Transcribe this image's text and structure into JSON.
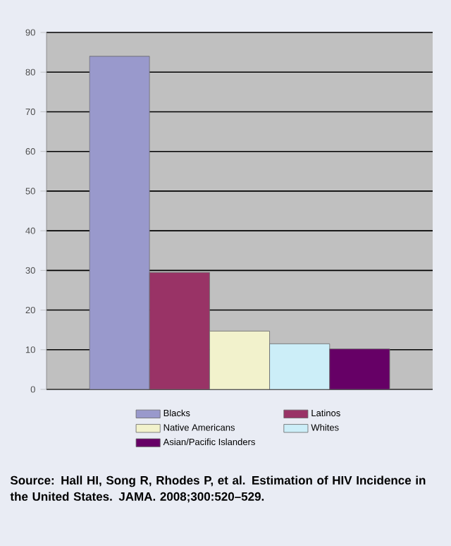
{
  "chart_data": {
    "type": "bar",
    "categories": [
      null
    ],
    "series": [
      {
        "name": "Blacks",
        "color": "#9999cc",
        "values": [
          84
        ]
      },
      {
        "name": "Latinos",
        "color": "#993366",
        "values": [
          29.5
        ]
      },
      {
        "name": "Native Americans",
        "color": "#f2f2cc",
        "values": [
          14.7
        ]
      },
      {
        "name": "Whites",
        "color": "#cceef8",
        "values": [
          11.5
        ]
      },
      {
        "name": "Asian/Pacific Islanders",
        "color": "#660066",
        "values": [
          10.2
        ]
      }
    ],
    "ylim": [
      0,
      90
    ],
    "yticks": [
      0,
      10,
      20,
      30,
      40,
      50,
      60,
      70,
      80,
      90
    ],
    "grid": "y",
    "legend": "bottom",
    "annotations": [
      "Source: Hall HI, Song R, Rhodes P, et al. Estimation of HIV Incidence in the United States. JAMA. 2008;300:520–529."
    ]
  }
}
